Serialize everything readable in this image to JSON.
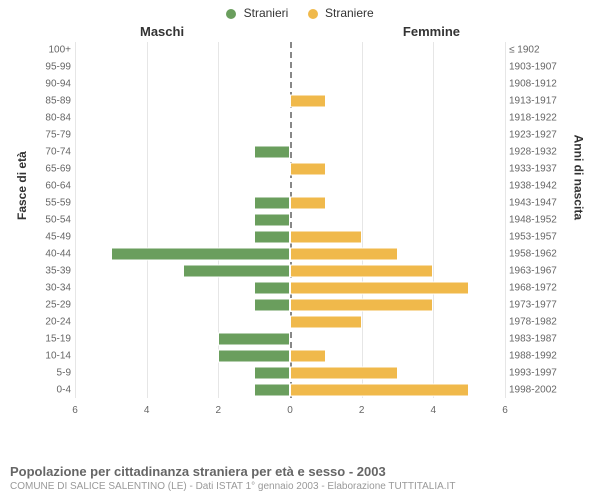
{
  "legend": {
    "male": {
      "label": "Stranieri",
      "color": "#6a9e5d"
    },
    "female": {
      "label": "Straniere",
      "color": "#f0b94b"
    }
  },
  "headers": {
    "left_col": "Maschi",
    "right_col": "Femmine",
    "left_axis": "Fasce di età",
    "right_axis": "Anni di nascita"
  },
  "chart": {
    "type": "population-pyramid",
    "xmax": 6,
    "xticks_left": [
      6,
      4,
      2,
      0
    ],
    "xticks_right": [
      0,
      2,
      4,
      6
    ],
    "bar_male_color": "#6a9e5d",
    "bar_female_color": "#f0b94b",
    "grid_color": "#e6e6e6",
    "centerline_color": "#888888",
    "background_color": "#ffffff",
    "label_fontsize": 10,
    "rows": [
      {
        "age": "100+",
        "birth": "≤ 1902",
        "m": 0,
        "f": 0
      },
      {
        "age": "95-99",
        "birth": "1903-1907",
        "m": 0,
        "f": 0
      },
      {
        "age": "90-94",
        "birth": "1908-1912",
        "m": 0,
        "f": 0
      },
      {
        "age": "85-89",
        "birth": "1913-1917",
        "m": 0,
        "f": 1
      },
      {
        "age": "80-84",
        "birth": "1918-1922",
        "m": 0,
        "f": 0
      },
      {
        "age": "75-79",
        "birth": "1923-1927",
        "m": 0,
        "f": 0
      },
      {
        "age": "70-74",
        "birth": "1928-1932",
        "m": 1,
        "f": 0
      },
      {
        "age": "65-69",
        "birth": "1933-1937",
        "m": 0,
        "f": 1
      },
      {
        "age": "60-64",
        "birth": "1938-1942",
        "m": 0,
        "f": 0
      },
      {
        "age": "55-59",
        "birth": "1943-1947",
        "m": 1,
        "f": 1
      },
      {
        "age": "50-54",
        "birth": "1948-1952",
        "m": 1,
        "f": 0
      },
      {
        "age": "45-49",
        "birth": "1953-1957",
        "m": 1,
        "f": 2
      },
      {
        "age": "40-44",
        "birth": "1958-1962",
        "m": 5,
        "f": 3
      },
      {
        "age": "35-39",
        "birth": "1963-1967",
        "m": 3,
        "f": 4
      },
      {
        "age": "30-34",
        "birth": "1968-1972",
        "m": 1,
        "f": 5
      },
      {
        "age": "25-29",
        "birth": "1973-1977",
        "m": 1,
        "f": 4
      },
      {
        "age": "20-24",
        "birth": "1978-1982",
        "m": 0,
        "f": 2
      },
      {
        "age": "15-19",
        "birth": "1983-1987",
        "m": 2,
        "f": 0
      },
      {
        "age": "10-14",
        "birth": "1988-1992",
        "m": 2,
        "f": 1
      },
      {
        "age": "5-9",
        "birth": "1993-1997",
        "m": 1,
        "f": 3
      },
      {
        "age": "0-4",
        "birth": "1998-2002",
        "m": 1,
        "f": 5
      }
    ]
  },
  "footer": {
    "title": "Popolazione per cittadinanza straniera per età e sesso - 2003",
    "subtitle": "COMUNE DI SALICE SALENTINO (LE) - Dati ISTAT 1° gennaio 2003 - Elaborazione TUTTITALIA.IT"
  }
}
